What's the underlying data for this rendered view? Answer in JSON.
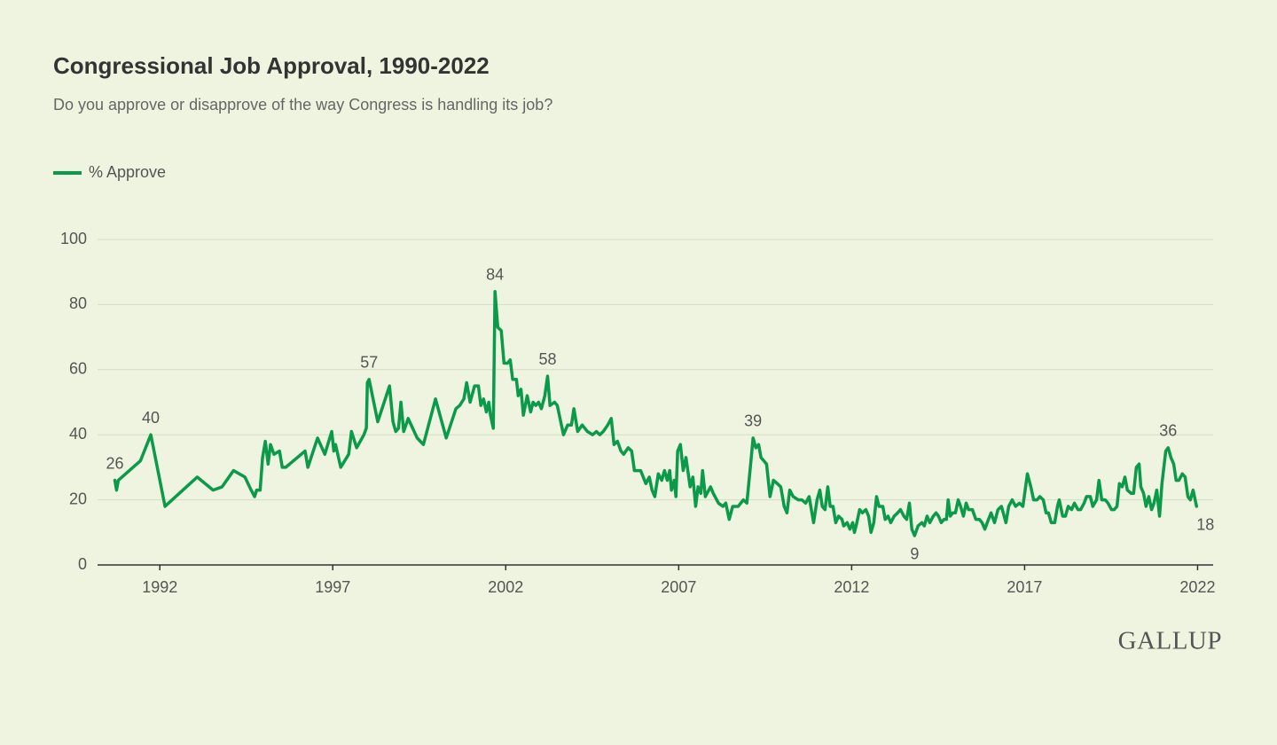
{
  "chart_data": {
    "type": "line",
    "title": "Congressional Job Approval, 1990-2022",
    "subtitle": "Do you approve or disapprove of the way Congress is handling its job?",
    "logo": "GALLUP",
    "x": [
      1990.7,
      1990.75,
      1990.8,
      1991.44,
      1991.74,
      1992.15,
      1993.08,
      1993.54,
      1993.8,
      1994.13,
      1994.46,
      1994.64,
      1994.74,
      1994.8,
      1994.9,
      1994.97,
      1995.05,
      1995.13,
      1995.2,
      1995.3,
      1995.46,
      1995.54,
      1995.64,
      1996.2,
      1996.28,
      1996.56,
      1996.77,
      1996.97,
      1997.03,
      1997.08,
      1997.23,
      1997.46,
      1997.54,
      1997.69,
      1997.9,
      1997.97,
      1998.0,
      1998.05,
      1998.3,
      1998.64,
      1998.74,
      1998.82,
      1998.9,
      1998.97,
      1999.05,
      1999.18,
      1999.44,
      1999.62,
      1999.97,
      2000.28,
      2000.56,
      2000.67,
      2000.79,
      2000.87,
      2000.97,
      2001.1,
      2001.21,
      2001.28,
      2001.36,
      2001.44,
      2001.51,
      2001.56,
      2001.64,
      2001.69,
      2001.77,
      2001.87,
      2001.95,
      2002.05,
      2002.13,
      2002.2,
      2002.31,
      2002.36,
      2002.44,
      2002.51,
      2002.62,
      2002.72,
      2002.79,
      2002.87,
      2002.95,
      2003.03,
      2003.13,
      2003.21,
      2003.28,
      2003.41,
      2003.49,
      2003.67,
      2003.79,
      2003.9,
      2003.97,
      2004.08,
      2004.21,
      2004.36,
      2004.51,
      2004.62,
      2004.72,
      2004.82,
      2004.95,
      2005.05,
      2005.13,
      2005.23,
      2005.33,
      2005.41,
      2005.54,
      2005.64,
      2005.72,
      2005.9,
      2006.05,
      2006.15,
      2006.23,
      2006.31,
      2006.41,
      2006.51,
      2006.59,
      2006.67,
      2006.74,
      2006.79,
      2006.87,
      2006.92,
      2006.97,
      2007.05,
      2007.13,
      2007.21,
      2007.33,
      2007.41,
      2007.49,
      2007.56,
      2007.64,
      2007.69,
      2007.77,
      2007.92,
      2008.0,
      2008.15,
      2008.28,
      2008.36,
      2008.46,
      2008.56,
      2008.72,
      2008.87,
      2008.97,
      2009.08,
      2009.15,
      2009.23,
      2009.31,
      2009.38,
      2009.54,
      2009.64,
      2009.74,
      2009.85,
      2009.95,
      2010.05,
      2010.13,
      2010.21,
      2010.31,
      2010.46,
      2010.56,
      2010.67,
      2010.77,
      2010.9,
      2011.0,
      2011.08,
      2011.15,
      2011.23,
      2011.31,
      2011.38,
      2011.46,
      2011.54,
      2011.62,
      2011.72,
      2011.77,
      2011.87,
      2011.95,
      2012.03,
      2012.08,
      2012.15,
      2012.23,
      2012.31,
      2012.41,
      2012.49,
      2012.56,
      2012.64,
      2012.72,
      2012.79,
      2012.9,
      2012.97,
      2013.05,
      2013.13,
      2013.23,
      2013.33,
      2013.41,
      2013.51,
      2013.59,
      2013.67,
      2013.74,
      2013.82,
      2013.92,
      2014.03,
      2014.1,
      2014.18,
      2014.26,
      2014.36,
      2014.44,
      2014.51,
      2014.59,
      2014.67,
      2014.74,
      2014.79,
      2014.85,
      2014.92,
      2015.0,
      2015.08,
      2015.15,
      2015.23,
      2015.31,
      2015.38,
      2015.49,
      2015.59,
      2015.69,
      2015.77,
      2015.85,
      2015.92,
      2016.03,
      2016.13,
      2016.23,
      2016.33,
      2016.46,
      2016.54,
      2016.64,
      2016.74,
      2016.85,
      2016.95,
      2017.08,
      2017.18,
      2017.26,
      2017.36,
      2017.44,
      2017.54,
      2017.62,
      2017.69,
      2017.77,
      2017.87,
      2017.95,
      2018.0,
      2018.1,
      2018.18,
      2018.26,
      2018.36,
      2018.44,
      2018.54,
      2018.62,
      2018.72,
      2018.79,
      2018.9,
      2018.97,
      2019.08,
      2019.15,
      2019.23,
      2019.33,
      2019.41,
      2019.51,
      2019.59,
      2019.67,
      2019.74,
      2019.82,
      2019.9,
      2019.97,
      2020.08,
      2020.15,
      2020.23,
      2020.31,
      2020.36,
      2020.44,
      2020.51,
      2020.59,
      2020.67,
      2020.74,
      2020.82,
      2020.9,
      2020.97,
      2021.08,
      2021.15,
      2021.23,
      2021.31,
      2021.38,
      2021.46,
      2021.56,
      2021.64,
      2021.72,
      2021.79,
      2021.87,
      2021.97
    ],
    "series": [
      {
        "name": "% Approve",
        "color": "#0b9a4a",
        "values": [
          26,
          23,
          26,
          32,
          40,
          18,
          27,
          23,
          24,
          29,
          27,
          23,
          21,
          23,
          23,
          33,
          38,
          31,
          37,
          34,
          35,
          30,
          30,
          35,
          30,
          39,
          34,
          41,
          35,
          37,
          30,
          34,
          41,
          36,
          40,
          42,
          56,
          57,
          44,
          55,
          44,
          41,
          42,
          50,
          41,
          45,
          39,
          37,
          51,
          39,
          48,
          49,
          51,
          56,
          50,
          55,
          55,
          49,
          51,
          47,
          50,
          46,
          42,
          84,
          73,
          72,
          62,
          62,
          63,
          57,
          57,
          52,
          54,
          46,
          52,
          47,
          50,
          49,
          50,
          48,
          52,
          58,
          49,
          50,
          49,
          40,
          43,
          43,
          48,
          41,
          43,
          41,
          40,
          41,
          40,
          41,
          43,
          45,
          37,
          38,
          35,
          34,
          36,
          35,
          29,
          29,
          25,
          27,
          23,
          21,
          28,
          26,
          29,
          26,
          29,
          23,
          26,
          21,
          35,
          37,
          29,
          33,
          24,
          27,
          18,
          24,
          22,
          29,
          21,
          24,
          22,
          19,
          18,
          19,
          14,
          18,
          18,
          20,
          19,
          31,
          39,
          36,
          37,
          33,
          31,
          21,
          26,
          25,
          24,
          18,
          16,
          23,
          21,
          20,
          20,
          19,
          21,
          13,
          20,
          23,
          18,
          17,
          24,
          18,
          18,
          13,
          15,
          14,
          12,
          13,
          11,
          13,
          10,
          13,
          17,
          16,
          17,
          15,
          10,
          13,
          21,
          18,
          18,
          14,
          15,
          13,
          15,
          16,
          17,
          15,
          14,
          19,
          11,
          9,
          12,
          13,
          12,
          15,
          13,
          15,
          16,
          15,
          13,
          14,
          14,
          20,
          15,
          16,
          16,
          20,
          18,
          15,
          19,
          17,
          17,
          14,
          14,
          13,
          11,
          13,
          16,
          13,
          17,
          18,
          13,
          18,
          20,
          18,
          19,
          18,
          28,
          24,
          20,
          20,
          21,
          20,
          16,
          16,
          13,
          13,
          18,
          20,
          15,
          15,
          18,
          17,
          19,
          17,
          17,
          19,
          21,
          21,
          18,
          20,
          26,
          20,
          20,
          19,
          17,
          17,
          18,
          25,
          24,
          27,
          23,
          22,
          22,
          30,
          31,
          24,
          22,
          18,
          21,
          17,
          19,
          23,
          15,
          25,
          35,
          36,
          33,
          31,
          26,
          26,
          28,
          27,
          21,
          20,
          23,
          18
        ]
      }
    ],
    "annotations": [
      {
        "label": "26",
        "x": 1990.7,
        "y": 26
      },
      {
        "label": "40",
        "x": 1991.74,
        "y": 40
      },
      {
        "label": "57",
        "x": 1998.05,
        "y": 57
      },
      {
        "label": "84",
        "x": 2001.69,
        "y": 84
      },
      {
        "label": "58",
        "x": 2003.21,
        "y": 58
      },
      {
        "label": "39",
        "x": 2009.15,
        "y": 39
      },
      {
        "label": "9",
        "x": 2013.82,
        "y": 9
      },
      {
        "label": "36",
        "x": 2021.15,
        "y": 36
      },
      {
        "label": "18",
        "x": 2021.97,
        "y": 18
      }
    ],
    "xlim": [
      1990.2,
      2022.45
    ],
    "xticks": [
      1992,
      1997,
      2002,
      2007,
      2012,
      2017,
      2022
    ],
    "ylim": [
      0,
      100
    ],
    "yticks": [
      0,
      20,
      40,
      60,
      80,
      100
    ],
    "grid": true
  }
}
